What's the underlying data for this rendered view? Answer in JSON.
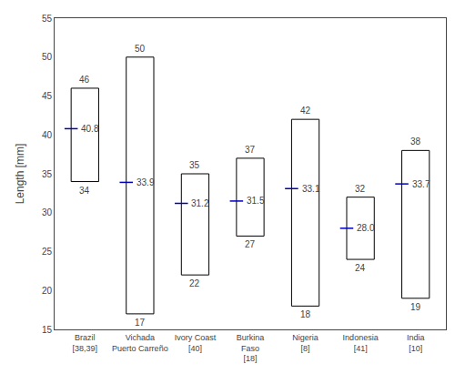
{
  "chart_data": {
    "type": "range_box",
    "categories": [
      "Brazil\n[38,39]",
      "Vichada\nPuerto Carreño",
      "Ivory Coast\n[40]",
      "Burkina\nFaso\n[18]",
      "Nigeria\n[8]",
      "Indonesia\n[41]",
      "India\n[10]"
    ],
    "box_bottom": [
      34,
      17,
      22,
      27,
      18,
      24,
      19
    ],
    "box_top": [
      46,
      50,
      35,
      37,
      42,
      32,
      38
    ],
    "mean": [
      40.8,
      33.9,
      31.2,
      31.5,
      33.1,
      28.0,
      33.7
    ],
    "mean_labels": [
      "40.8",
      "33.9",
      "31.2",
      "31.5",
      "33.1",
      "28.0",
      "33.7"
    ],
    "color": "#0000bb",
    "ylabel": "Length [mm]",
    "ylim": [
      15,
      55
    ],
    "yticks": [
      15,
      20,
      25,
      30,
      35,
      40,
      45,
      50,
      55
    ],
    "grid": false,
    "data_labels": true
  }
}
